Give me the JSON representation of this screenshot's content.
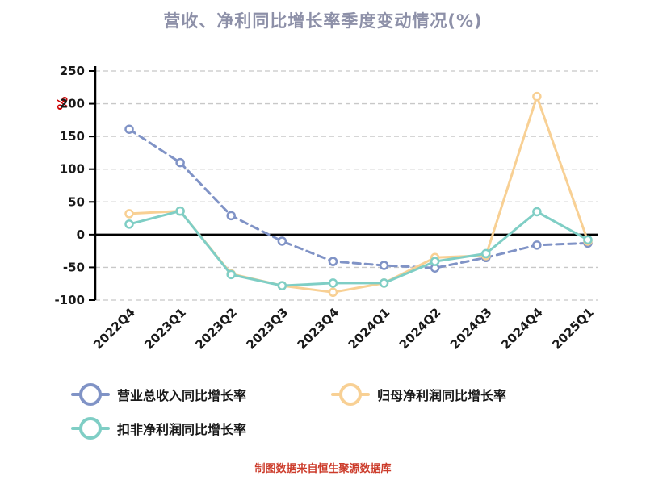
{
  "page": {
    "title": "营收、净利同比增长率季度变动情况(%)",
    "y_axis_unit": "%",
    "footer_note": "制图数据来自恒生聚源数据库"
  },
  "colors": {
    "title": "#8d90a8",
    "axis": "#000000",
    "grid": "#c8c8c8",
    "unit_label": "#cc0000",
    "footer": "#cc3b2a",
    "revenue_series": "#8093c6",
    "net_profit_series": "#f8d094",
    "non_gaap_series": "#7fcec5"
  },
  "chart_data": {
    "type": "line",
    "title": "营收、净利同比增长率季度变动情况(%)",
    "categories": [
      "2022Q4",
      "2023Q1",
      "2023Q2",
      "2023Q3",
      "2023Q4",
      "2024Q1",
      "2024Q2",
      "2024Q3",
      "2024Q4",
      "2025Q1"
    ],
    "series": [
      {
        "name": "营业总收入同比增长率",
        "color": "#8093c6",
        "style": "dashed",
        "values": [
          161,
          110,
          29,
          -10,
          -41,
          -47,
          -51,
          -35,
          -16,
          -13
        ]
      },
      {
        "name": "归母净利润同比增长率",
        "color": "#f8d094",
        "style": "solid",
        "values": [
          32,
          36,
          -60,
          -78,
          -88,
          -74,
          -35,
          -32,
          211,
          -10
        ]
      },
      {
        "name": "扣非净利润同比增长率",
        "color": "#7fcec5",
        "style": "solid",
        "values": [
          16,
          36,
          -61,
          -78,
          -74,
          -74,
          -41,
          -29,
          35,
          -8
        ]
      }
    ],
    "ylim": [
      -100,
      250
    ],
    "yticks": [
      250,
      200,
      150,
      100,
      50,
      0,
      -50,
      -100
    ],
    "ylabel": "%",
    "grid": "horizontal-dashed",
    "legend_position": "bottom-left"
  }
}
